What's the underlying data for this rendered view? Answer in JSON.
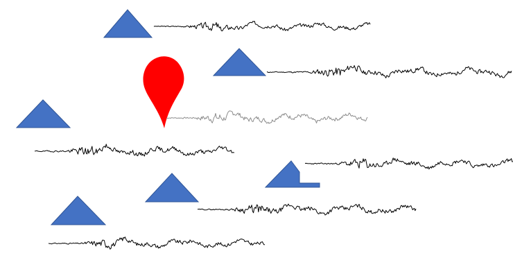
{
  "colors": {
    "station_fill": "#4472C4",
    "station_stroke": "#2F5597",
    "event_marker": "#FF0000",
    "trace_dark": "#000000",
    "trace_light": "#8C8C8C",
    "background": "#FFFFFF"
  },
  "icons": {
    "station": "seismic-station-triangle-icon",
    "event": "earthquake-location-pin-icon"
  },
  "stations": [
    {
      "id": "station-1",
      "trace": "trace-1"
    },
    {
      "id": "station-2",
      "trace": "trace-2"
    },
    {
      "id": "station-3",
      "trace": "trace-3"
    },
    {
      "id": "station-4",
      "trace": "trace-4"
    },
    {
      "id": "station-5",
      "trace": "trace-5"
    },
    {
      "id": "station-6",
      "trace": "trace-6"
    },
    {
      "id": "station-7",
      "trace": "trace-7"
    }
  ],
  "event_trace": {
    "id": "trace-event",
    "style": "light"
  }
}
